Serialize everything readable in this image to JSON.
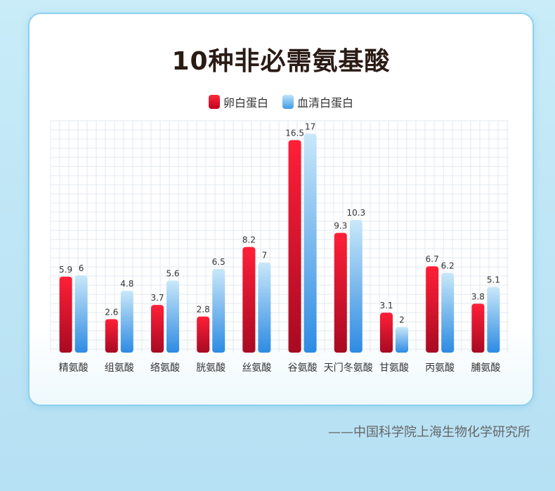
{
  "chart_data": {
    "type": "bar",
    "title": "10种非必需氨基酸",
    "categories": [
      "精氨酸",
      "组氨酸",
      "络氨酸",
      "胱氨酸",
      "丝氨酸",
      "谷氨酸",
      "天门冬氨酸",
      "甘氨酸",
      "丙氨酸",
      "脯氨酸"
    ],
    "series": [
      {
        "name": "卵白蛋白",
        "values": [
          5.9,
          2.6,
          3.7,
          2.8,
          8.2,
          16.5,
          9.3,
          3.1,
          6.7,
          3.8
        ],
        "labels": [
          "5.9",
          "2.6",
          "3.7",
          "2.8",
          "8.2",
          "16.5",
          "9.3",
          "3.1",
          "6.7",
          "3.8"
        ],
        "color": "#d8102c"
      },
      {
        "name": "血清白蛋白",
        "values": [
          6,
          4.8,
          5.6,
          6.5,
          7,
          17,
          10.3,
          2,
          6.2,
          5.1
        ],
        "labels": [
          "6",
          "4.8",
          "5.6",
          "6.5",
          "7",
          "17",
          "10.3",
          "2",
          "6.2",
          "5.1"
        ],
        "color": "#5aaef0"
      }
    ],
    "xlabel": "",
    "ylabel": "",
    "ylim": [
      0,
      18
    ],
    "grid": true,
    "legend": "top-center"
  },
  "source": "——中国科学院上海生物化学研究所"
}
